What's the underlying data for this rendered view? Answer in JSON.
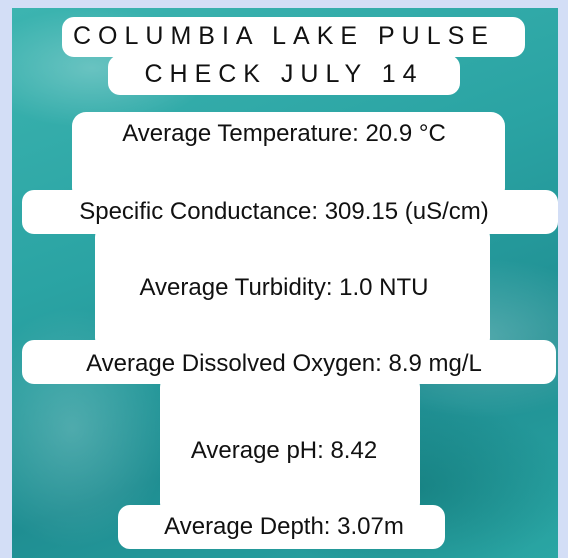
{
  "title": {
    "lines": [
      "COLUMBIA LAKE PULSE",
      "CHECK JULY 14"
    ]
  },
  "items": [
    "Average Temperature: 20.9 °C",
    "Specific Conductance: 309.15 (uS/cm)",
    "Average Turbidity: 1.0 NTU",
    "Average Dissolved Oxygen: 8.9 mg/L",
    "Average pH: 8.42",
    "Average Depth: 3.07m"
  ]
}
